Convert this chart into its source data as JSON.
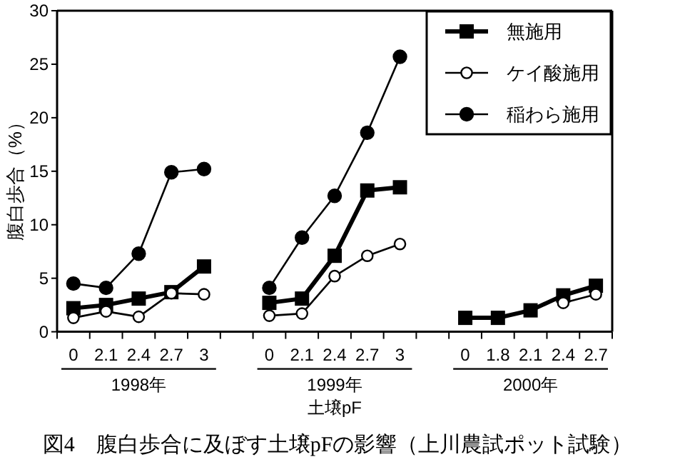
{
  "chart_data": {
    "type": "line",
    "title": "図4　腹白歩合に及ぼす土壌pFの影響（上川農試ポット試験）",
    "xlabel": "土壌pF",
    "ylabel": "腹白歩合（%）",
    "annotations": [
      "1998年",
      "1999年",
      "2000年"
    ],
    "categories": [
      "0",
      "2.1",
      "2.4",
      "2.7",
      "3",
      null,
      "0",
      "2.1",
      "2.4",
      "2.7",
      "3",
      null,
      "0",
      "1.8",
      "2.1",
      "2.4",
      "2.7"
    ],
    "series": [
      {
        "name": "無施用",
        "color": "#000000",
        "marker": "square",
        "values": [
          2.2,
          2.5,
          3.1,
          3.7,
          6.1,
          null,
          2.7,
          3.1,
          7.1,
          13.2,
          13.5,
          null,
          1.3,
          1.3,
          2.0,
          3.4,
          4.3
        ]
      },
      {
        "name": "ケイ酸施用",
        "color": "#000000",
        "marker": "circle",
        "values": [
          1.3,
          1.9,
          1.4,
          3.6,
          3.5,
          null,
          1.5,
          1.7,
          5.2,
          7.1,
          8.2,
          null,
          null,
          null,
          null,
          2.7,
          3.5
        ]
      },
      {
        "name": "稲わら施用",
        "color": "#000000",
        "marker": "circle",
        "values": [
          4.5,
          4.1,
          7.3,
          14.9,
          15.2,
          null,
          4.1,
          8.8,
          12.7,
          18.6,
          25.7,
          null,
          null,
          null,
          null,
          null,
          null
        ]
      }
    ],
    "ylim": [
      0,
      30
    ],
    "yticks": [
      0,
      5,
      10,
      15,
      20,
      25,
      30
    ],
    "legend": "top right",
    "line_style": "solid"
  }
}
